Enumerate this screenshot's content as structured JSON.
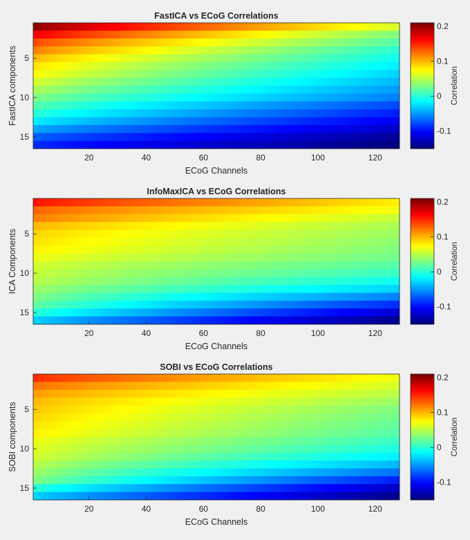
{
  "chart_data": [
    {
      "type": "heatmap",
      "title": "FastICA vs ECoG Correlations",
      "xlabel": "ECoG Channels",
      "ylabel": "FastICA components",
      "colorbar_label": "Correlation",
      "colormap": "jet",
      "x_range": [
        1,
        128
      ],
      "y_range": [
        1,
        16
      ],
      "clim": [
        -0.15,
        0.21
      ],
      "x_ticks": [
        "20",
        "40",
        "60",
        "80",
        "100",
        "120"
      ],
      "y_ticks": [
        "5",
        "10",
        "15"
      ],
      "colorbar_ticks": [
        "0.2",
        "0.1",
        "0",
        "-0.1"
      ],
      "row_values_at_ch1": [
        0.205,
        0.17,
        0.14,
        0.12,
        0.1,
        0.085,
        0.075,
        0.06,
        0.045,
        0.03,
        0.015,
        0.0,
        -0.02,
        -0.045,
        -0.07,
        -0.09
      ],
      "row_values_at_ch128": [
        0.06,
        0.03,
        0.015,
        0.0,
        -0.01,
        -0.02,
        -0.03,
        -0.04,
        -0.05,
        -0.06,
        -0.08,
        -0.095,
        -0.11,
        -0.125,
        -0.14,
        -0.15
      ]
    },
    {
      "type": "heatmap",
      "title": "InfoMaxICA vs ECoG Correlations",
      "xlabel": "ECoG Channels",
      "ylabel": "ICA Components",
      "colorbar_label": "Correlation",
      "colormap": "jet",
      "x_range": [
        1,
        128
      ],
      "y_range": [
        1,
        16
      ],
      "clim": [
        -0.15,
        0.21
      ],
      "x_ticks": [
        "20",
        "40",
        "60",
        "80",
        "100",
        "120"
      ],
      "y_ticks": [
        "5",
        "10",
        "15"
      ],
      "colorbar_ticks": [
        "0.2",
        "0.1",
        "0",
        "-0.1"
      ],
      "row_values_at_ch1": [
        0.16,
        0.13,
        0.12,
        0.1,
        0.09,
        0.085,
        0.08,
        0.07,
        0.06,
        0.055,
        0.05,
        0.04,
        0.03,
        0.02,
        0.0,
        -0.03
      ],
      "row_values_at_ch128": [
        0.08,
        0.07,
        0.055,
        0.045,
        0.04,
        0.035,
        0.03,
        0.025,
        0.015,
        0.005,
        -0.01,
        -0.03,
        -0.06,
        -0.09,
        -0.12,
        -0.145
      ]
    },
    {
      "type": "heatmap",
      "title": "SOBI vs ECoG Correlations",
      "xlabel": "ECoG Channels",
      "ylabel": "SOBI components",
      "colorbar_label": "Correlation",
      "colormap": "jet",
      "x_range": [
        1,
        128
      ],
      "y_range": [
        1,
        16
      ],
      "clim": [
        -0.15,
        0.21
      ],
      "x_ticks": [
        "20",
        "40",
        "60",
        "80",
        "100",
        "120"
      ],
      "y_ticks": [
        "5",
        "10",
        "15"
      ],
      "colorbar_ticks": [
        "0.2",
        "0.1",
        "0",
        "-0.1"
      ],
      "row_values_at_ch1": [
        0.15,
        0.125,
        0.11,
        0.1,
        0.095,
        0.09,
        0.085,
        0.08,
        0.07,
        0.065,
        0.06,
        0.05,
        0.04,
        0.03,
        0.0,
        -0.03
      ],
      "row_values_at_ch128": [
        0.07,
        0.06,
        0.05,
        0.04,
        0.03,
        0.025,
        0.02,
        0.015,
        0.005,
        -0.005,
        -0.02,
        -0.04,
        -0.065,
        -0.095,
        -0.125,
        -0.145
      ]
    }
  ]
}
